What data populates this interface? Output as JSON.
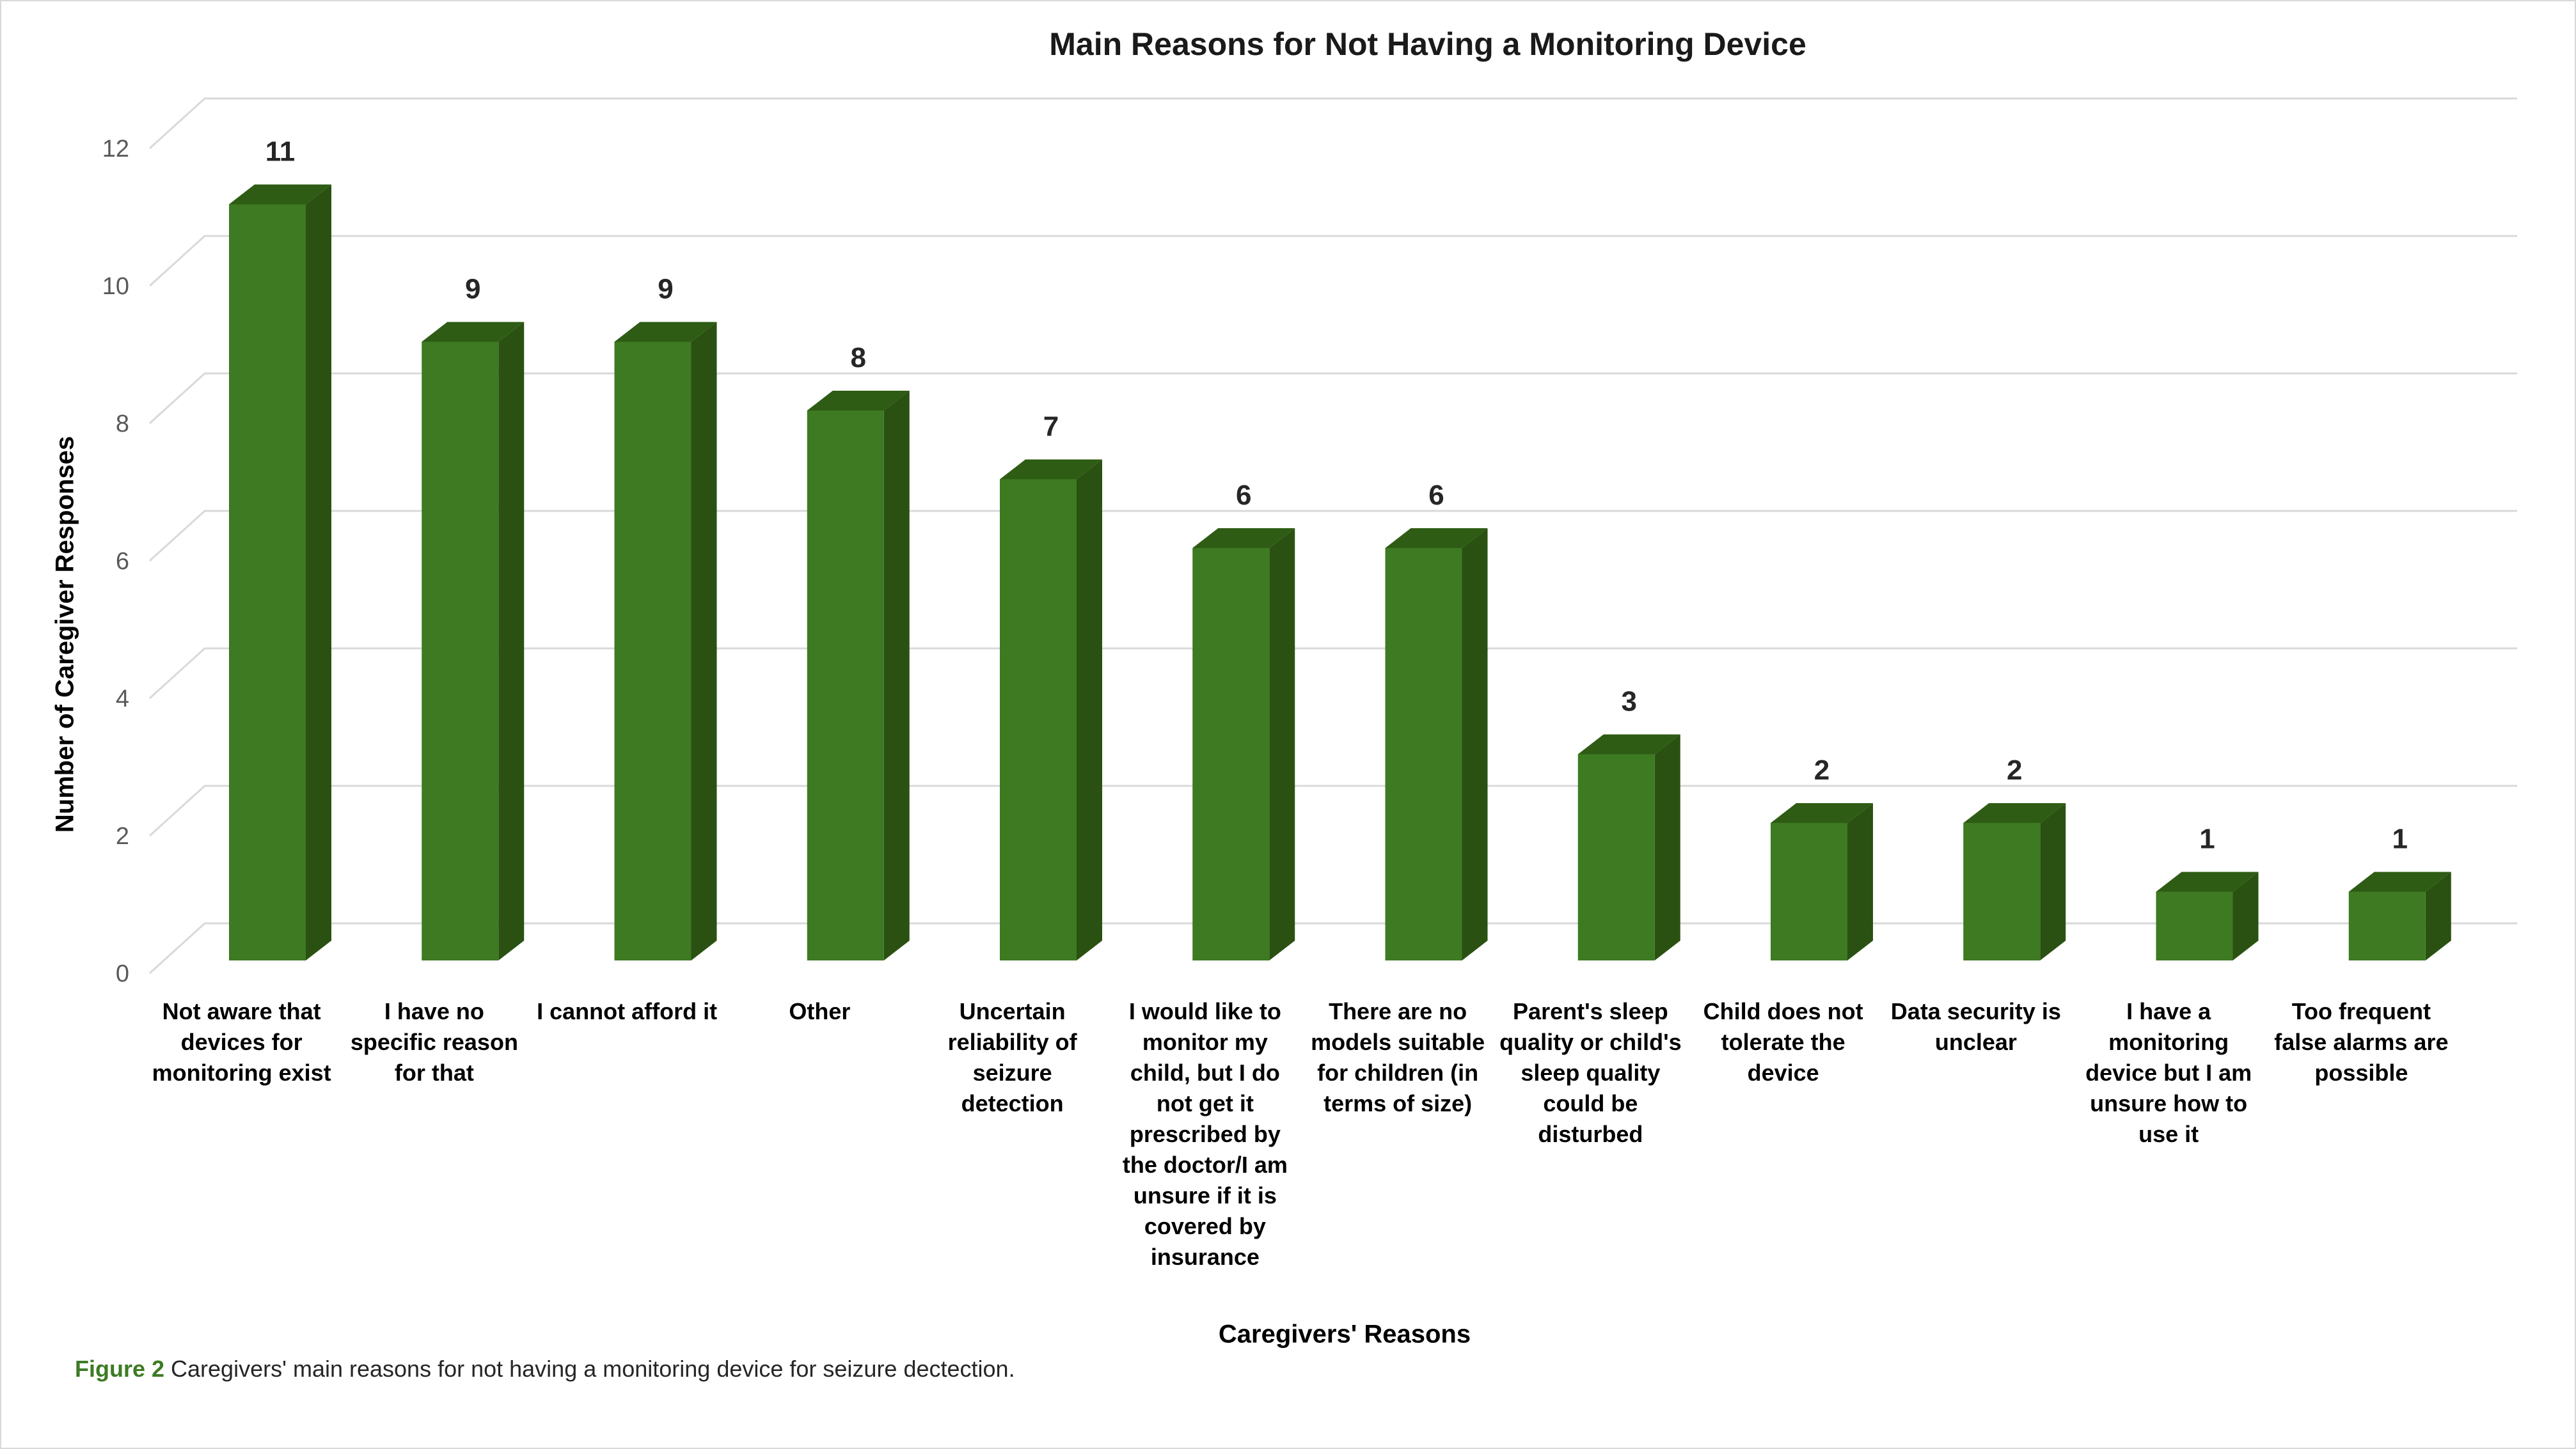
{
  "caption": {
    "label": "Figure 2",
    "text": "Caregivers' main reasons for not having a monitoring device for seizure dectection."
  },
  "chart_data": {
    "type": "bar",
    "style": "3d-column",
    "title": "Main Reasons for Not Having a Monitoring Device",
    "xlabel": "Caregivers' Reasons",
    "ylabel": "Number of Caregiver Responses",
    "categories": [
      "Not aware that devices for monitoring exist",
      "I have no specific reason for that",
      "I cannot afford it",
      "Other",
      "Uncertain reliability of seizure detection",
      "I would like to monitor my child, but I do not get it prescribed by the doctor/I am unsure if it is covered by insurance",
      "There are no models suitable for children (in terms of size)",
      "Parent's sleep quality or child's sleep quality could be disturbed",
      "Child does not tolerate the device",
      "Data security is unclear",
      "I have a monitoring device but I am unsure how to use it",
      "Too frequent false alarms are possible"
    ],
    "values": [
      11,
      9,
      9,
      8,
      7,
      6,
      6,
      3,
      2,
      2,
      1,
      1
    ],
    "ylim": [
      0,
      12
    ],
    "yticks": [
      0,
      2,
      4,
      6,
      8,
      10,
      12
    ],
    "grid": true,
    "legend_position": "none",
    "colors": {
      "bar_front": "#3d7a22",
      "bar_top": "#2e5c14",
      "bar_side": "#2a5112",
      "gridline": "#d9d9d9",
      "tick_label": "#595959",
      "value_label": "#262626",
      "caption_label": "#3e7b24"
    }
  }
}
